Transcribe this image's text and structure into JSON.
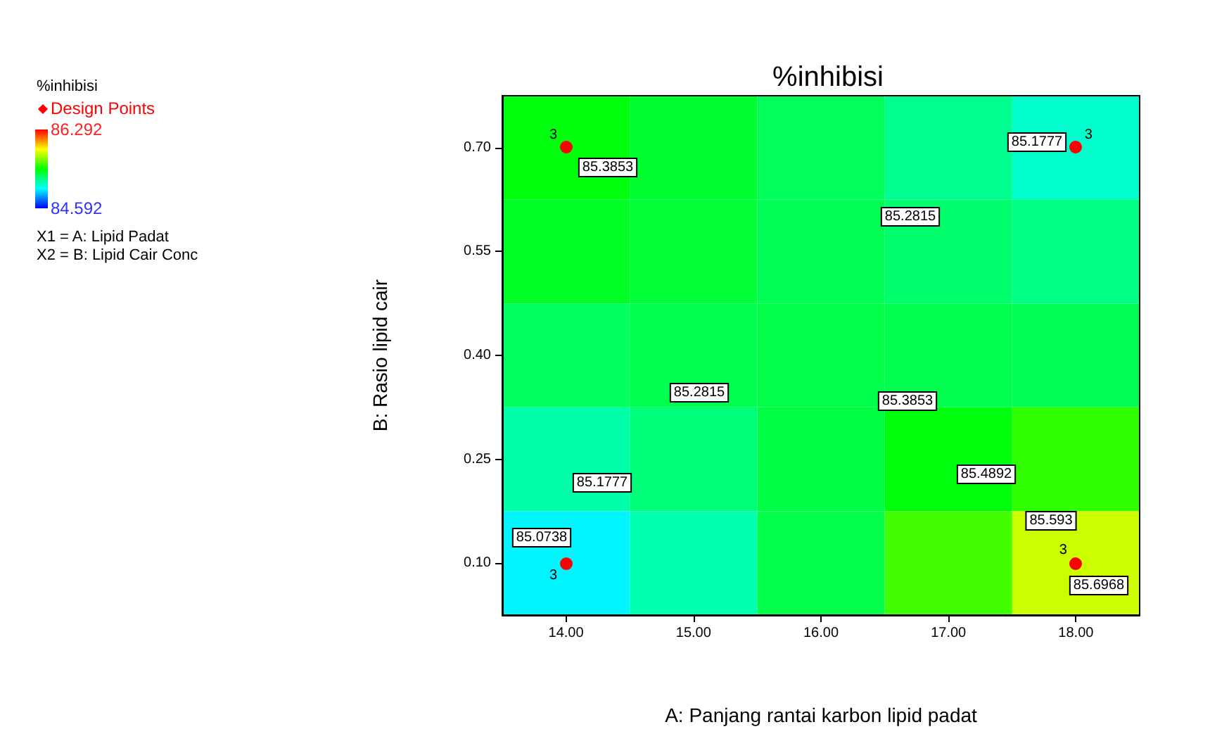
{
  "chart_data": {
    "type": "heatmap",
    "title": "%inhibisi",
    "xlabel": "A: Panjang rantai karbon lipid padat",
    "ylabel": "B: Rasio lipid cair",
    "legend_title": "%inhibisi",
    "clim": [
      84.592,
      86.292
    ],
    "cticks": [
      84.592,
      86.292
    ],
    "categories": [
      "14.00",
      "15.00",
      "16.00",
      "17.00",
      "18.00"
    ],
    "y_categories": [
      "0.70",
      "0.55",
      "0.40",
      "0.25",
      "0.10"
    ],
    "cells": [
      [
        85.42,
        85.36,
        85.29,
        85.2,
        85.1
      ],
      [
        85.38,
        85.35,
        85.3,
        85.26,
        85.22
      ],
      [
        85.28,
        85.31,
        85.32,
        85.31,
        85.3
      ],
      [
        85.16,
        85.24,
        85.33,
        85.42,
        85.52
      ],
      [
        85.0,
        85.15,
        85.32,
        85.55,
        85.78
      ]
    ],
    "annotations": [
      "85.3853",
      "85.1777",
      "85.2815",
      "85.2815",
      "85.3853",
      "85.4892",
      "85.1777",
      "85.593",
      "85.0738",
      "85.6968",
      "Design Points",
      "3",
      "3",
      "3",
      "3",
      "X1 = A: Lipid Padat",
      "X2 = B: Lipid Cair Conc"
    ]
  }
}
